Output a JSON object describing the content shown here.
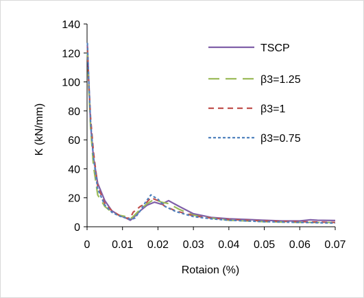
{
  "chart_data": {
    "type": "line",
    "title": "",
    "xlabel": "Rotaion (%)",
    "ylabel": "K (kN/mm)",
    "xlim": [
      0,
      0.07
    ],
    "ylim": [
      0,
      140
    ],
    "x_ticks": [
      0,
      0.01,
      0.02,
      0.03,
      0.04,
      0.05,
      0.06,
      0.07
    ],
    "y_ticks": [
      0,
      20,
      40,
      60,
      80,
      100,
      120,
      140
    ],
    "x_tick_labels": [
      "0",
      "0.01",
      "0.02",
      "0.03",
      "0.04",
      "0.05",
      "0.06",
      "0.07"
    ],
    "y_tick_labels": [
      "0",
      "20",
      "40",
      "60",
      "80",
      "100",
      "120",
      "140"
    ],
    "grid": false,
    "legend_position": "top-right",
    "series": [
      {
        "name": "TSCP",
        "color": "#7f5fa8",
        "dash": "solid",
        "points": [
          [
            0.0001,
            125
          ],
          [
            0.0005,
            100
          ],
          [
            0.001,
            70
          ],
          [
            0.0018,
            48
          ],
          [
            0.003,
            30
          ],
          [
            0.005,
            18
          ],
          [
            0.007,
            11
          ],
          [
            0.009,
            8
          ],
          [
            0.011,
            6
          ],
          [
            0.0122,
            4.5
          ],
          [
            0.013,
            6
          ],
          [
            0.015,
            11
          ],
          [
            0.017,
            15
          ],
          [
            0.019,
            17
          ],
          [
            0.021,
            15.5
          ],
          [
            0.023,
            18
          ],
          [
            0.026,
            14
          ],
          [
            0.03,
            9
          ],
          [
            0.035,
            6.5
          ],
          [
            0.04,
            5.5
          ],
          [
            0.045,
            5
          ],
          [
            0.05,
            4.5
          ],
          [
            0.055,
            4
          ],
          [
            0.06,
            4
          ],
          [
            0.063,
            4.8
          ],
          [
            0.065,
            4.5
          ],
          [
            0.07,
            4.3
          ]
        ]
      },
      {
        "name": "β3=1.25",
        "color": "#9bbb59",
        "dash": "long",
        "points": [
          [
            0.0001,
            122
          ],
          [
            0.0005,
            95
          ],
          [
            0.001,
            68
          ],
          [
            0.0018,
            42
          ],
          [
            0.003,
            22
          ],
          [
            0.005,
            14
          ],
          [
            0.007,
            10
          ],
          [
            0.009,
            8
          ],
          [
            0.011,
            7
          ],
          [
            0.0122,
            5.5
          ],
          [
            0.013,
            7
          ],
          [
            0.015,
            12
          ],
          [
            0.017,
            16
          ],
          [
            0.019,
            19
          ],
          [
            0.021,
            17
          ],
          [
            0.023,
            16
          ],
          [
            0.026,
            12
          ],
          [
            0.03,
            8
          ],
          [
            0.035,
            6
          ],
          [
            0.04,
            4.5
          ],
          [
            0.05,
            3.5
          ],
          [
            0.06,
            3
          ],
          [
            0.07,
            3
          ]
        ]
      },
      {
        "name": "β3=1",
        "color": "#c0504d",
        "dash": "medium",
        "points": [
          [
            0.0001,
            124
          ],
          [
            0.0005,
            98
          ],
          [
            0.001,
            75
          ],
          [
            0.0018,
            52
          ],
          [
            0.003,
            28
          ],
          [
            0.005,
            16
          ],
          [
            0.007,
            11
          ],
          [
            0.009,
            8
          ],
          [
            0.011,
            6
          ],
          [
            0.0122,
            6
          ],
          [
            0.013,
            10
          ],
          [
            0.015,
            14
          ],
          [
            0.0165,
            16
          ],
          [
            0.018,
            20
          ],
          [
            0.02,
            18
          ],
          [
            0.022,
            14
          ],
          [
            0.025,
            11
          ],
          [
            0.03,
            7.5
          ],
          [
            0.035,
            6
          ],
          [
            0.04,
            5
          ],
          [
            0.05,
            4
          ],
          [
            0.06,
            3.5
          ],
          [
            0.07,
            3
          ]
        ]
      },
      {
        "name": "β3=0.75",
        "color": "#4f81bd",
        "dash": "short",
        "points": [
          [
            0.0001,
            127
          ],
          [
            0.0005,
            100
          ],
          [
            0.001,
            72
          ],
          [
            0.0018,
            48
          ],
          [
            0.003,
            26
          ],
          [
            0.005,
            15
          ],
          [
            0.007,
            10
          ],
          [
            0.009,
            7.5
          ],
          [
            0.011,
            6
          ],
          [
            0.0125,
            5
          ],
          [
            0.0135,
            6
          ],
          [
            0.015,
            11
          ],
          [
            0.0165,
            17
          ],
          [
            0.018,
            22
          ],
          [
            0.02,
            19
          ],
          [
            0.022,
            14
          ],
          [
            0.025,
            10.5
          ],
          [
            0.03,
            7
          ],
          [
            0.035,
            5.5
          ],
          [
            0.04,
            4.5
          ],
          [
            0.05,
            3.5
          ],
          [
            0.06,
            3
          ],
          [
            0.07,
            2.5
          ]
        ]
      }
    ]
  }
}
